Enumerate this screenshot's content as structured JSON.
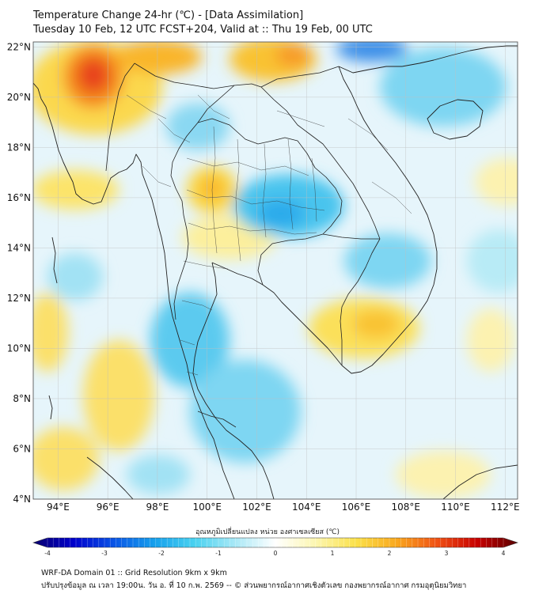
{
  "header": {
    "title": "Temperature Change 24-hr (℃) - [Data Assimilation]",
    "subtitle": "Tuesday 10 Feb, 12 UTC FCST+204, Valid at :: Thu 19 Feb, 00 UTC"
  },
  "map": {
    "lon_range": [
      93,
      112.5
    ],
    "lat_range": [
      4,
      22.2
    ],
    "lat_ticks": [
      "22°N",
      "20°N",
      "18°N",
      "16°N",
      "14°N",
      "12°N",
      "10°N",
      "8°N",
      "6°N",
      "4°N"
    ],
    "lat_values": [
      22,
      20,
      18,
      16,
      14,
      12,
      10,
      8,
      6,
      4
    ],
    "lon_ticks": [
      "94°E",
      "96°E",
      "98°E",
      "100°E",
      "102°E",
      "104°E",
      "106°E",
      "108°E",
      "110°E",
      "112°E"
    ],
    "lon_values": [
      94,
      96,
      98,
      100,
      102,
      104,
      106,
      108,
      110,
      112
    ],
    "grid": true
  },
  "colorbar": {
    "title": "อุณหภูมิเปลี่ยนแปลง หน่วย องศาเซลเซียส (℃)",
    "min": -4,
    "max": 4,
    "tick_labels": [
      "-4",
      "-3",
      "-2",
      "-1",
      "0",
      "1",
      "2",
      "3",
      "4"
    ],
    "tick_values": [
      -4,
      -3,
      -2,
      -1,
      0,
      1,
      2,
      3,
      4
    ],
    "colors": [
      "#0a006e",
      "#0000cc",
      "#0a55e6",
      "#16a0ec",
      "#4ad2f0",
      "#a8e8f6",
      "#ffffff",
      "#fcf6b0",
      "#fbe14a",
      "#f9a81e",
      "#f05214",
      "#c80000",
      "#5a0000"
    ]
  },
  "footer": {
    "line1": "WRF-DA Domain 01 :: Grid Resolution 9km x 9km",
    "line2": "ปรับปรุงข้อมูล ณ เวลา 19:00น. วัน อ. ที่ 10 ก.พ. 2569 -- © ส่วนพยากรณ์อากาศเชิงตัวเลข กองพยากรณ์อากาศ กรมอุตุนิยมวิทยา"
  }
}
